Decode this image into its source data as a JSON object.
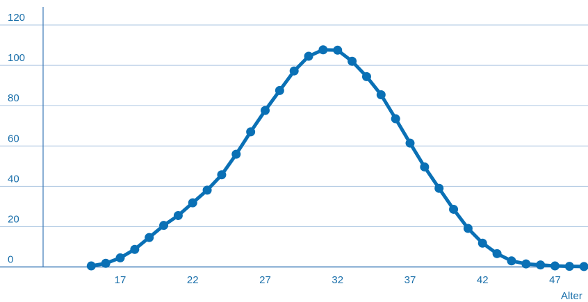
{
  "chart_data": {
    "type": "line",
    "title": "",
    "xlabel": "Alter",
    "ylabel": "",
    "x_ticks": [
      "17",
      "22",
      "27",
      "32",
      "37",
      "42",
      "47"
    ],
    "y_ticks": [
      "0",
      "20",
      "40",
      "60",
      "80",
      "100",
      "120"
    ],
    "xlim": [
      12,
      49
    ],
    "ylim": [
      0,
      120
    ],
    "grid": "horizontal",
    "legend": "none",
    "series": [
      {
        "x": [
          15,
          16,
          17,
          18,
          19,
          20,
          21,
          22,
          23,
          24,
          25,
          26,
          27,
          28,
          29,
          30,
          31,
          32,
          33,
          34,
          35,
          36,
          37,
          38,
          39,
          40,
          41,
          42,
          43,
          44,
          45,
          46,
          47,
          48,
          49
        ],
        "values": [
          0.5,
          1.8,
          4.5,
          8.7,
          14.6,
          20.6,
          25.5,
          31.8,
          38.1,
          45.7,
          55.9,
          67,
          77.6,
          87.5,
          97.2,
          104.5,
          107.7,
          107.5,
          102,
          94.4,
          85.4,
          73.5,
          61.4,
          49.6,
          39,
          28.6,
          19.1,
          11.8,
          6.6,
          3,
          1.5,
          1,
          0.5,
          0.3,
          0.2
        ]
      }
    ]
  },
  "colors": {
    "accent": "#0a70b5",
    "axis_text": "#1a6faa",
    "gridline": "#aac4e0",
    "axis": "#3d7ab8"
  }
}
